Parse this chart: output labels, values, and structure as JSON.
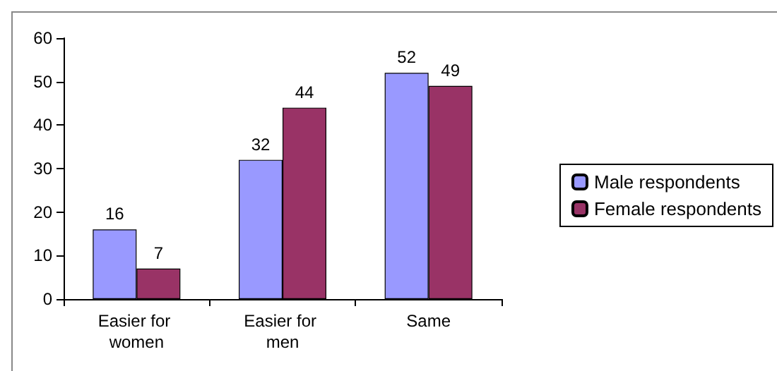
{
  "chart_data": {
    "type": "bar",
    "categories": [
      "Easier for women",
      "Easier for men",
      "Same"
    ],
    "series": [
      {
        "name": "Male respondents",
        "color": "#9999ff",
        "values": [
          16,
          32,
          52
        ]
      },
      {
        "name": "Female respondents",
        "color": "#993366",
        "values": [
          7,
          44,
          49
        ]
      }
    ],
    "ylim": [
      0,
      60
    ],
    "yticks": [
      0,
      10,
      20,
      30,
      40,
      50,
      60
    ],
    "grid": false,
    "legend": "right",
    "data_labels": true
  }
}
